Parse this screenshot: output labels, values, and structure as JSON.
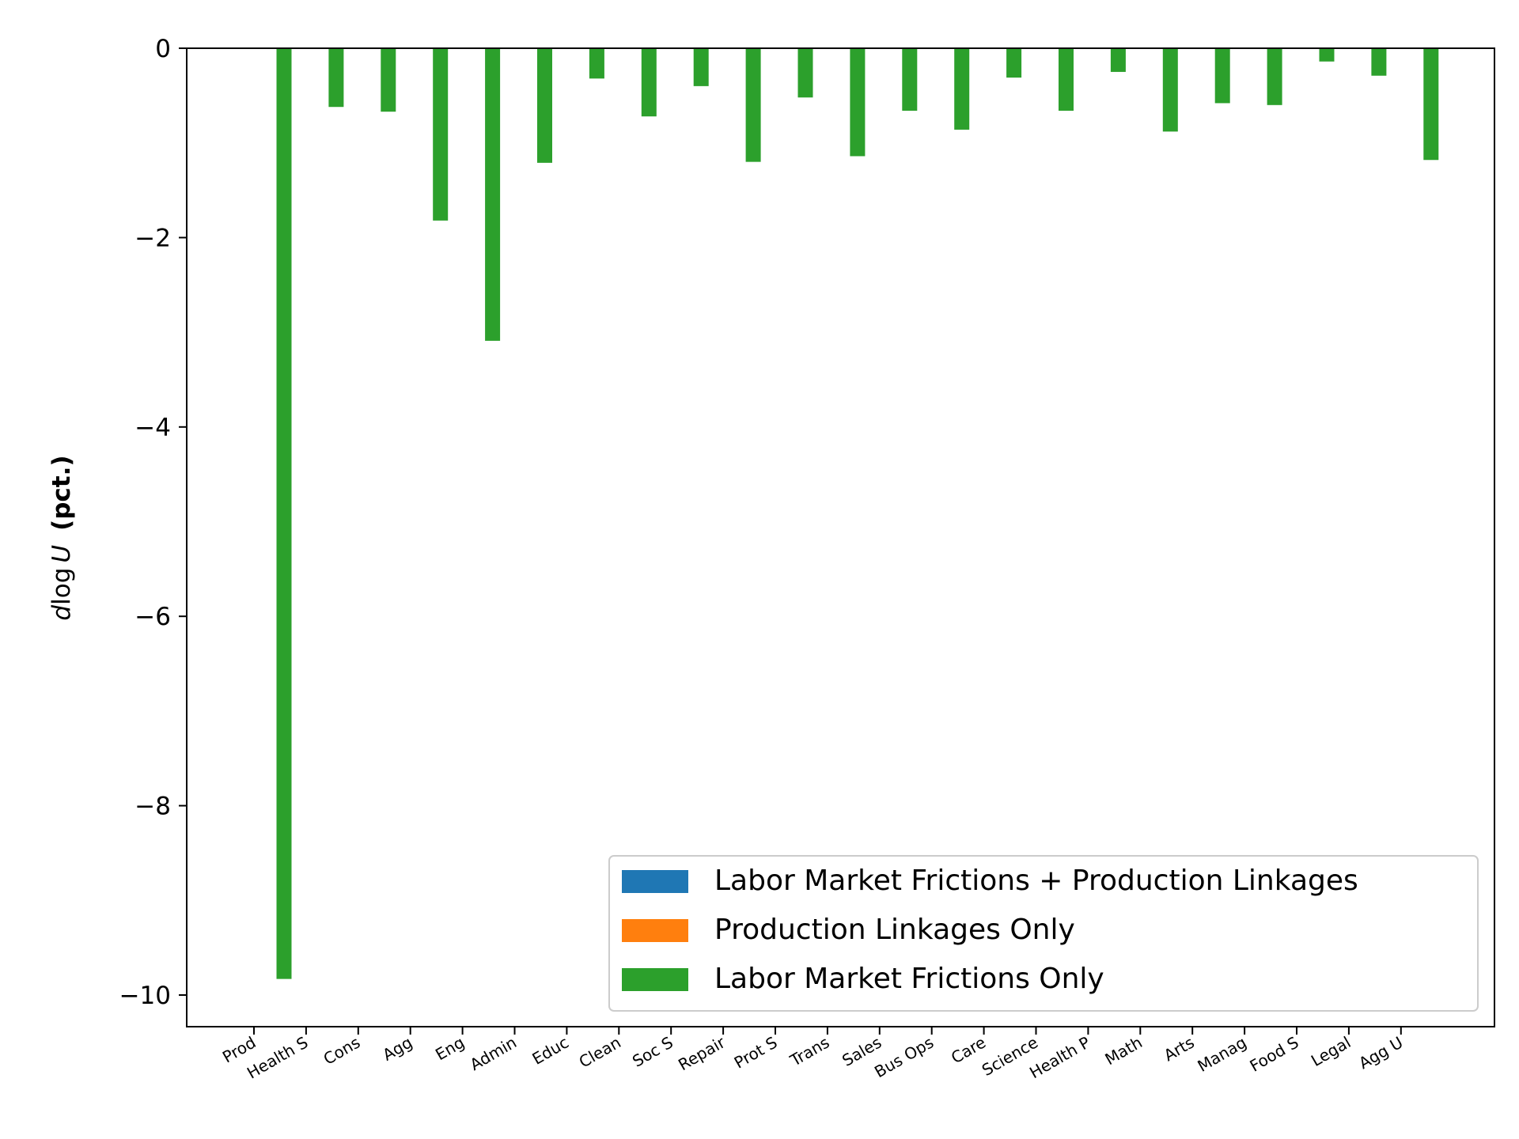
{
  "chart_data": {
    "type": "bar",
    "ylabel_math": "dlogU",
    "ylabel_d": "d",
    "ylabel_log": "log",
    "ylabel_U": "U",
    "ylabel_unit": "(pct.)",
    "ylim": [
      -10.3,
      0
    ],
    "yticks": [
      0,
      -2,
      -4,
      -6,
      -8,
      -10
    ],
    "ytick_labels": [
      "0",
      "−2",
      "−4",
      "−6",
      "−8",
      "−10"
    ],
    "categories": [
      "Prod",
      "Health S",
      "Cons",
      "Agg",
      "Eng",
      "Admin",
      "Educ",
      "Clean",
      "Soc S",
      "Repair",
      "Prot S",
      "Trans",
      "Sales",
      "Bus Ops",
      "Care",
      "Science",
      "Health P",
      "Math",
      "Arts",
      "Manag",
      "Food S",
      "Legal",
      "Agg U"
    ],
    "series": [
      {
        "name": "Labor Market Frictions + Production Linkages",
        "color": "#1f77b4",
        "values": [
          0,
          0,
          0,
          0,
          0,
          0,
          0,
          0,
          0,
          0,
          0,
          0,
          0,
          0,
          0,
          0,
          0,
          0,
          0,
          0,
          0,
          0,
          0
        ]
      },
      {
        "name": "Production Linkages Only",
        "color": "#ff7f0e",
        "values": [
          0,
          0,
          0,
          0,
          0,
          0,
          0,
          0,
          0,
          0,
          0,
          0,
          0,
          0,
          0,
          0,
          0,
          0,
          0,
          0,
          0,
          0,
          0
        ]
      },
      {
        "name": "Labor Market Frictions Only",
        "color": "#2ca02c",
        "values": [
          -9.83,
          -0.62,
          -0.67,
          -1.82,
          -3.09,
          -1.21,
          -0.32,
          -0.72,
          -0.4,
          -1.2,
          -0.52,
          -1.14,
          -0.66,
          -0.86,
          -0.31,
          -0.66,
          -0.25,
          -0.88,
          -0.58,
          -0.6,
          -0.14,
          -0.29,
          -1.18
        ]
      }
    ],
    "legend_position": "lower-right",
    "grid": false
  }
}
